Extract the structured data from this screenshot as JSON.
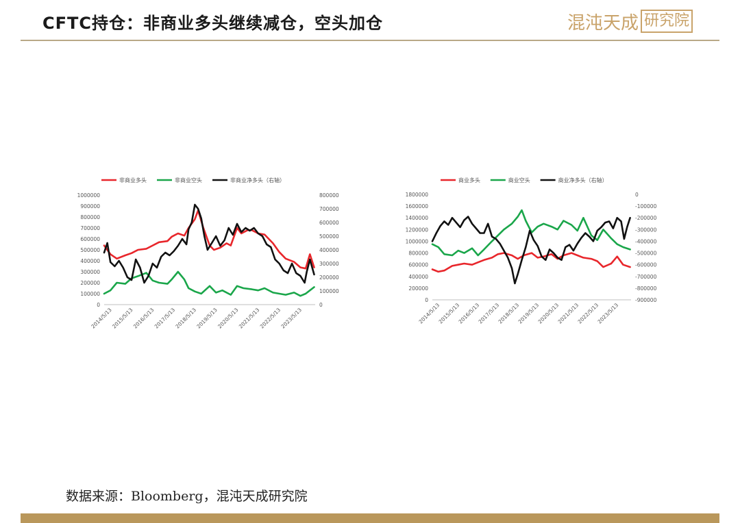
{
  "header": {
    "title": "CFTC持仓：非商业多头继续减仓，空头加仓",
    "logo_text": "混沌天成",
    "logo_boxed_text": "研究院",
    "accent_color": "#c9a36a"
  },
  "footer": {
    "source": "数据来源：Bloomberg，混沌天成研究院",
    "bar_color": "#b9975b"
  },
  "chart_data": [
    {
      "type": "line",
      "title": "",
      "legend_position": "top",
      "grid": false,
      "x_tick_labels": [
        "2014/5/13",
        "2015/5/13",
        "2016/5/13",
        "2017/5/13",
        "2018/5/13",
        "2019/5/13",
        "2020/5/13",
        "2021/5/13",
        "2022/5/13",
        "2023/5/13"
      ],
      "x_range": [
        2014.0,
        2024.0
      ],
      "y_left": {
        "range": [
          0,
          1000000
        ],
        "ticks": [
          0,
          100000,
          200000,
          300000,
          400000,
          500000,
          600000,
          700000,
          800000,
          900000,
          1000000
        ]
      },
      "y_right": {
        "range": [
          0,
          800000
        ],
        "ticks": [
          0,
          100000,
          200000,
          300000,
          400000,
          500000,
          600000,
          700000,
          800000
        ]
      },
      "series": [
        {
          "name": "非商业多头",
          "color": "#e8262b",
          "axis": "left",
          "x": [
            2014.0,
            2014.3,
            2014.6,
            2015.0,
            2015.3,
            2015.6,
            2016.0,
            2016.3,
            2016.6,
            2017.0,
            2017.2,
            2017.5,
            2017.8,
            2018.0,
            2018.3,
            2018.45,
            2018.7,
            2019.0,
            2019.2,
            2019.5,
            2019.8,
            2020.0,
            2020.3,
            2020.5,
            2020.8,
            2021.0,
            2021.3,
            2021.6,
            2022.0,
            2022.3,
            2022.6,
            2023.0,
            2023.3,
            2023.55,
            2023.75,
            2023.95
          ],
          "values": [
            540000,
            460000,
            420000,
            450000,
            470000,
            500000,
            510000,
            540000,
            570000,
            580000,
            620000,
            650000,
            630000,
            700000,
            780000,
            860000,
            700000,
            540000,
            500000,
            520000,
            560000,
            540000,
            700000,
            650000,
            680000,
            680000,
            650000,
            640000,
            560000,
            480000,
            420000,
            390000,
            340000,
            330000,
            460000,
            340000
          ]
        },
        {
          "name": "非商业空头",
          "color": "#1aa64a",
          "axis": "left",
          "x": [
            2014.0,
            2014.3,
            2014.6,
            2015.0,
            2015.3,
            2015.6,
            2016.0,
            2016.3,
            2016.6,
            2017.0,
            2017.2,
            2017.5,
            2017.8,
            2018.0,
            2018.3,
            2018.6,
            2019.0,
            2019.3,
            2019.6,
            2020.0,
            2020.3,
            2020.6,
            2021.0,
            2021.3,
            2021.6,
            2022.0,
            2022.3,
            2022.6,
            2023.0,
            2023.3,
            2023.55,
            2023.75,
            2023.95
          ],
          "values": [
            100000,
            130000,
            200000,
            190000,
            240000,
            260000,
            290000,
            220000,
            200000,
            190000,
            230000,
            300000,
            230000,
            150000,
            120000,
            100000,
            170000,
            110000,
            130000,
            90000,
            170000,
            150000,
            140000,
            130000,
            150000,
            110000,
            100000,
            90000,
            110000,
            80000,
            100000,
            130000,
            160000
          ]
        },
        {
          "name": "非商业净多头（右轴）",
          "color": "#111111",
          "axis": "right",
          "x": [
            2014.0,
            2014.15,
            2014.3,
            2014.5,
            2014.7,
            2014.9,
            2015.1,
            2015.3,
            2015.5,
            2015.7,
            2015.9,
            2016.1,
            2016.3,
            2016.5,
            2016.7,
            2016.9,
            2017.1,
            2017.3,
            2017.5,
            2017.7,
            2017.9,
            2018.0,
            2018.15,
            2018.3,
            2018.45,
            2018.6,
            2018.75,
            2018.9,
            2019.1,
            2019.3,
            2019.5,
            2019.7,
            2019.9,
            2020.1,
            2020.3,
            2020.5,
            2020.7,
            2020.9,
            2021.1,
            2021.3,
            2021.5,
            2021.7,
            2021.9,
            2022.1,
            2022.3,
            2022.5,
            2022.7,
            2022.9,
            2023.1,
            2023.3,
            2023.5,
            2023.6,
            2023.75,
            2023.95
          ],
          "values": [
            380000,
            450000,
            310000,
            280000,
            320000,
            270000,
            200000,
            180000,
            330000,
            270000,
            160000,
            210000,
            300000,
            270000,
            350000,
            380000,
            360000,
            390000,
            430000,
            480000,
            440000,
            550000,
            600000,
            730000,
            700000,
            630000,
            500000,
            400000,
            450000,
            500000,
            430000,
            470000,
            560000,
            510000,
            590000,
            530000,
            560000,
            540000,
            560000,
            520000,
            500000,
            440000,
            420000,
            330000,
            300000,
            250000,
            230000,
            300000,
            230000,
            210000,
            160000,
            240000,
            330000,
            220000
          ]
        }
      ]
    },
    {
      "type": "line",
      "title": "",
      "legend_position": "top",
      "grid": false,
      "x_tick_labels": [
        "2014/5/13",
        "2015/5/13",
        "2016/5/13",
        "2017/5/13",
        "2018/5/13",
        "2019/5/13",
        "2020/5/13",
        "2021/5/13",
        "2022/5/13",
        "2023/5/13"
      ],
      "x_range": [
        2014.0,
        2024.0
      ],
      "y_left": {
        "range": [
          0,
          1800000
        ],
        "ticks": [
          0,
          200000,
          400000,
          600000,
          800000,
          1000000,
          1200000,
          1400000,
          1600000,
          1800000
        ]
      },
      "y_right": {
        "range": [
          -900000,
          0
        ],
        "ticks": [
          0,
          -100000,
          -200000,
          -300000,
          -400000,
          -500000,
          -600000,
          -700000,
          -800000,
          -900000
        ]
      },
      "series": [
        {
          "name": "商业多头",
          "color": "#e8262b",
          "axis": "left",
          "x": [
            2014.0,
            2014.3,
            2014.6,
            2015.0,
            2015.3,
            2015.6,
            2016.0,
            2016.3,
            2016.6,
            2017.0,
            2017.3,
            2017.6,
            2018.0,
            2018.3,
            2018.6,
            2019.0,
            2019.3,
            2019.6,
            2020.0,
            2020.3,
            2020.6,
            2021.0,
            2021.3,
            2021.6,
            2022.0,
            2022.3,
            2022.6,
            2023.0,
            2023.3,
            2023.6,
            2023.95
          ],
          "values": [
            520000,
            480000,
            500000,
            580000,
            600000,
            620000,
            600000,
            640000,
            680000,
            720000,
            780000,
            800000,
            760000,
            700000,
            760000,
            800000,
            720000,
            740000,
            780000,
            700000,
            760000,
            800000,
            760000,
            720000,
            700000,
            660000,
            560000,
            620000,
            740000,
            600000,
            560000
          ]
        },
        {
          "name": "商业空头",
          "color": "#1aa64a",
          "axis": "left",
          "x": [
            2014.0,
            2014.3,
            2014.6,
            2015.0,
            2015.3,
            2015.6,
            2016.0,
            2016.3,
            2016.6,
            2017.0,
            2017.3,
            2017.6,
            2018.0,
            2018.3,
            2018.5,
            2018.7,
            2019.0,
            2019.3,
            2019.6,
            2020.0,
            2020.3,
            2020.6,
            2021.0,
            2021.3,
            2021.6,
            2022.0,
            2022.3,
            2022.6,
            2023.0,
            2023.3,
            2023.6,
            2023.95
          ],
          "values": [
            950000,
            900000,
            780000,
            760000,
            840000,
            800000,
            880000,
            760000,
            860000,
            1000000,
            1100000,
            1200000,
            1300000,
            1420000,
            1530000,
            1350000,
            1150000,
            1250000,
            1300000,
            1250000,
            1200000,
            1350000,
            1280000,
            1180000,
            1400000,
            1100000,
            1020000,
            1200000,
            1050000,
            950000,
            900000,
            860000
          ]
        },
        {
          "name": "商业净多头（右轴）",
          "color": "#111111",
          "axis": "right",
          "x": [
            2014.0,
            2014.2,
            2014.4,
            2014.6,
            2014.8,
            2015.0,
            2015.2,
            2015.4,
            2015.6,
            2015.8,
            2016.0,
            2016.2,
            2016.4,
            2016.6,
            2016.8,
            2017.0,
            2017.2,
            2017.4,
            2017.6,
            2017.8,
            2018.0,
            2018.15,
            2018.3,
            2018.5,
            2018.7,
            2018.9,
            2019.1,
            2019.3,
            2019.5,
            2019.7,
            2019.9,
            2020.1,
            2020.3,
            2020.5,
            2020.7,
            2020.9,
            2021.1,
            2021.3,
            2021.5,
            2021.7,
            2021.9,
            2022.1,
            2022.3,
            2022.5,
            2022.7,
            2022.9,
            2023.1,
            2023.3,
            2023.5,
            2023.65,
            2023.8,
            2023.95
          ],
          "values": [
            -400000,
            -330000,
            -270000,
            -230000,
            -260000,
            -200000,
            -240000,
            -280000,
            -220000,
            -190000,
            -250000,
            -290000,
            -330000,
            -330000,
            -250000,
            -360000,
            -380000,
            -420000,
            -480000,
            -540000,
            -630000,
            -760000,
            -680000,
            -560000,
            -450000,
            -310000,
            -390000,
            -440000,
            -530000,
            -560000,
            -470000,
            -500000,
            -540000,
            -560000,
            -450000,
            -430000,
            -480000,
            -420000,
            -370000,
            -330000,
            -360000,
            -400000,
            -310000,
            -280000,
            -240000,
            -230000,
            -290000,
            -200000,
            -230000,
            -380000,
            -280000,
            -200000
          ]
        }
      ]
    }
  ]
}
